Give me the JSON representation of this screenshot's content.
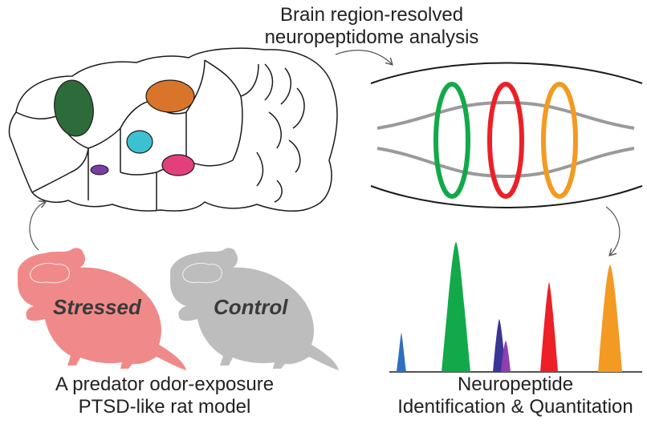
{
  "top_title_line1": "Brain region-resolved",
  "top_title_line2": "neuropeptidome analysis",
  "stressed_label": "Stressed",
  "control_label": "Control",
  "bottom_left_line1": "A predator odor-exposure",
  "bottom_left_line2": "PTSD-like rat model",
  "bottom_right_line1": "Neuropeptide",
  "bottom_right_line2": "Identification & Quantitation",
  "colors": {
    "region_green": "#2e6b3a",
    "region_orange": "#d9752b",
    "region_cyan": "#3cc1d0",
    "region_pink": "#e33f7d",
    "region_purple": "#7a3fa6",
    "ring_green": "#12a94a",
    "ring_red": "#ec2027",
    "ring_orange": "#f39a22",
    "stressed_rat": "#f08a8a",
    "control_rat": "#bdbdbd"
  }
}
